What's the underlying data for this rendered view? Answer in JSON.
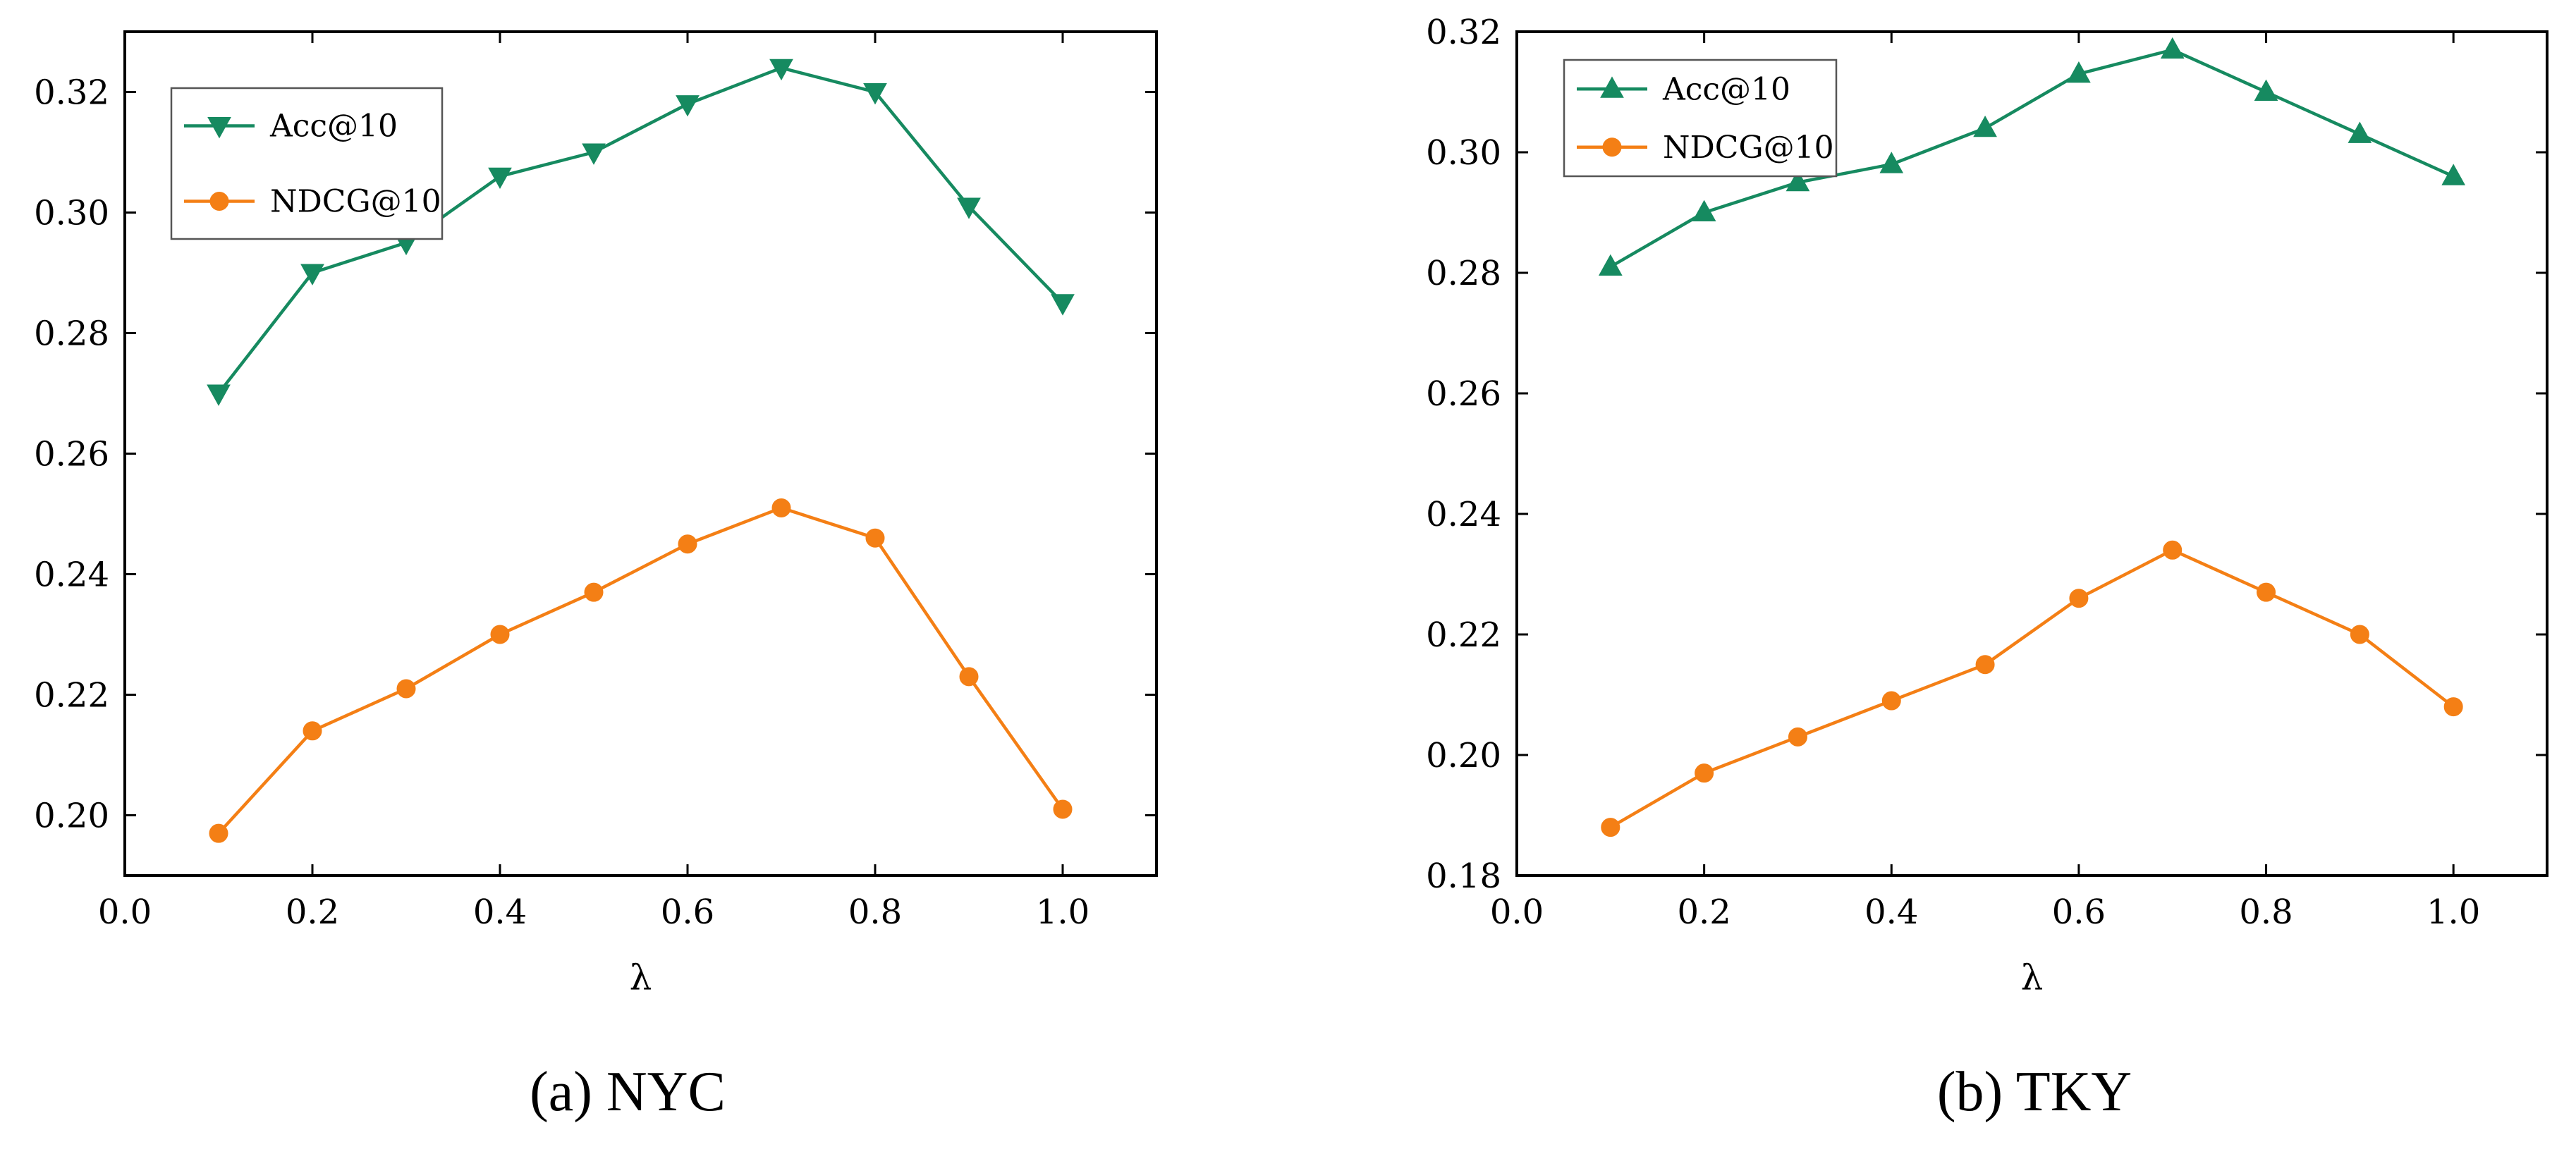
{
  "chart_data": [
    {
      "id": "nyc",
      "type": "line",
      "caption": "(a) NYC",
      "xlabel": "λ",
      "ylabel": "",
      "xlim": [
        0.0,
        1.1
      ],
      "ylim": [
        0.19,
        0.33
      ],
      "xticks": [
        0.0,
        0.2,
        0.4,
        0.6,
        0.8,
        1.0
      ],
      "xtick_labels": [
        "0.0",
        "0.2",
        "0.4",
        "0.6",
        "0.8",
        "1.0"
      ],
      "yticks": [
        0.2,
        0.22,
        0.24,
        0.26,
        0.28,
        0.3,
        0.32
      ],
      "ytick_labels": [
        "0.20",
        "0.22",
        "0.24",
        "0.26",
        "0.28",
        "0.30",
        "0.32"
      ],
      "legend_position": "top-left",
      "x": [
        0.1,
        0.2,
        0.3,
        0.4,
        0.5,
        0.6,
        0.7,
        0.8,
        0.9,
        1.0
      ],
      "series": [
        {
          "name": "Acc@10",
          "marker": "triangle-down",
          "color": "#168a60",
          "values": [
            0.27,
            0.29,
            0.295,
            0.306,
            0.31,
            0.318,
            0.324,
            0.32,
            0.301,
            0.285
          ]
        },
        {
          "name": "NDCG@10",
          "marker": "circle",
          "color": "#f47f15",
          "values": [
            0.197,
            0.214,
            0.221,
            0.23,
            0.237,
            0.245,
            0.251,
            0.246,
            0.223,
            0.201
          ]
        }
      ]
    },
    {
      "id": "tky",
      "type": "line",
      "caption": "(b) TKY",
      "xlabel": "λ",
      "ylabel": "",
      "xlim": [
        0.0,
        1.1
      ],
      "ylim": [
        0.18,
        0.32
      ],
      "xticks": [
        0.0,
        0.2,
        0.4,
        0.6,
        0.8,
        1.0
      ],
      "xtick_labels": [
        "0.0",
        "0.2",
        "0.4",
        "0.6",
        "0.8",
        "1.0"
      ],
      "yticks": [
        0.18,
        0.2,
        0.22,
        0.24,
        0.26,
        0.28,
        0.3,
        0.32
      ],
      "ytick_labels": [
        "0.18",
        "0.20",
        "0.22",
        "0.24",
        "0.26",
        "0.28",
        "0.30",
        "0.32"
      ],
      "legend_position": "top-left",
      "x": [
        0.1,
        0.2,
        0.3,
        0.4,
        0.5,
        0.6,
        0.7,
        0.8,
        0.9,
        1.0
      ],
      "series": [
        {
          "name": "Acc@10",
          "marker": "triangle-up",
          "color": "#168a60",
          "values": [
            0.281,
            0.29,
            0.295,
            0.298,
            0.304,
            0.313,
            0.317,
            0.31,
            0.303,
            0.296
          ]
        },
        {
          "name": "NDCG@10",
          "marker": "circle",
          "color": "#f47f15",
          "values": [
            0.188,
            0.197,
            0.203,
            0.209,
            0.215,
            0.226,
            0.234,
            0.227,
            0.22,
            0.208
          ]
        }
      ]
    }
  ]
}
